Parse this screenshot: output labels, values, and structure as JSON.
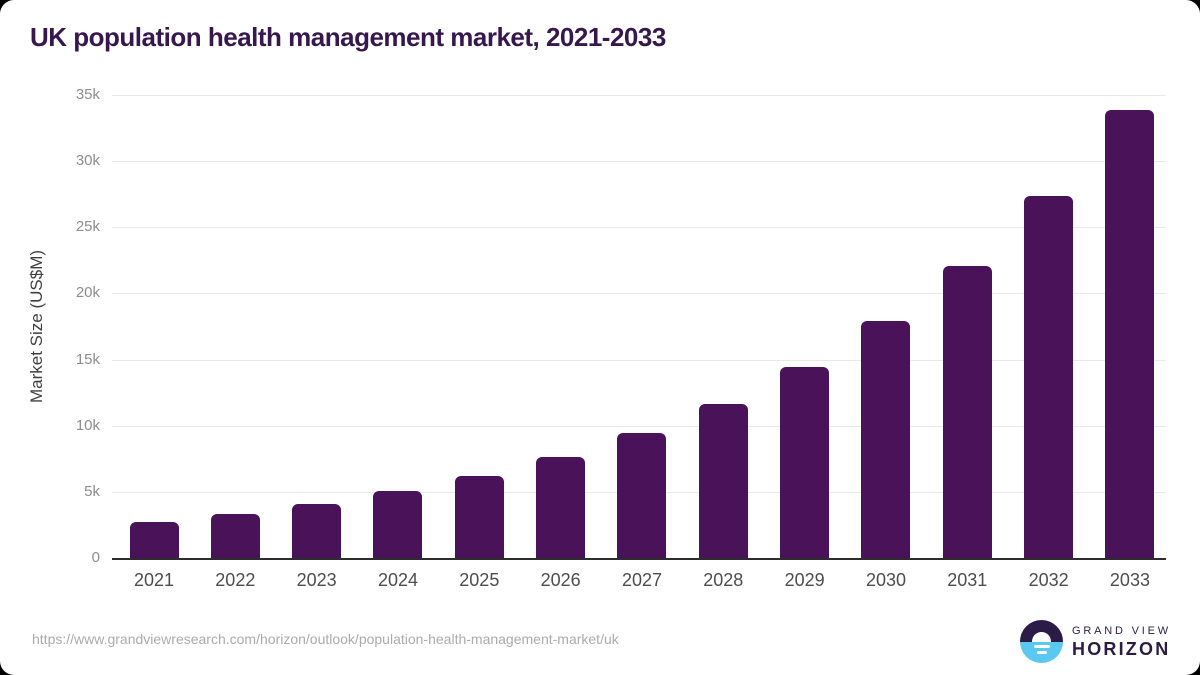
{
  "title": {
    "text": "UK population health management market, 2021-2033",
    "color": "#36184f"
  },
  "chart_data": {
    "type": "bar",
    "title": "UK population health management market, 2021-2033",
    "categories": [
      "2021",
      "2022",
      "2023",
      "2024",
      "2025",
      "2026",
      "2027",
      "2028",
      "2029",
      "2030",
      "2031",
      "2032",
      "2033"
    ],
    "values": [
      2700,
      3300,
      4100,
      5100,
      6200,
      7650,
      9450,
      11650,
      14450,
      17900,
      22100,
      27400,
      33900
    ],
    "xlabel": "",
    "ylabel": "Market Size (US$M)",
    "ylim": [
      0,
      35000
    ],
    "yticks": [
      0,
      5000,
      10000,
      15000,
      20000,
      25000,
      30000,
      35000
    ],
    "ytick_labels": [
      "0",
      "5k",
      "10k",
      "15k",
      "20k",
      "25k",
      "30k",
      "35k"
    ],
    "grid": true,
    "legend": false,
    "bar_color": "#4a1259"
  },
  "footer": {
    "source_url": "https://www.grandviewresearch.com/horizon/outlook/population-health-management-market/uk",
    "logo": {
      "line1": "GRAND VIEW",
      "line2": "HORIZON",
      "dark_color": "#2b1c47",
      "blue_color": "#5bc8f2"
    }
  },
  "colors": {
    "grid": "#e9e9e9",
    "axis": "#2d2d2d",
    "ytick_text": "#8d8d8d",
    "xtick_text": "#4d4d4d",
    "ylabel_text": "#3f3f3f",
    "url_text": "#ababab",
    "background": "#ffffff"
  }
}
